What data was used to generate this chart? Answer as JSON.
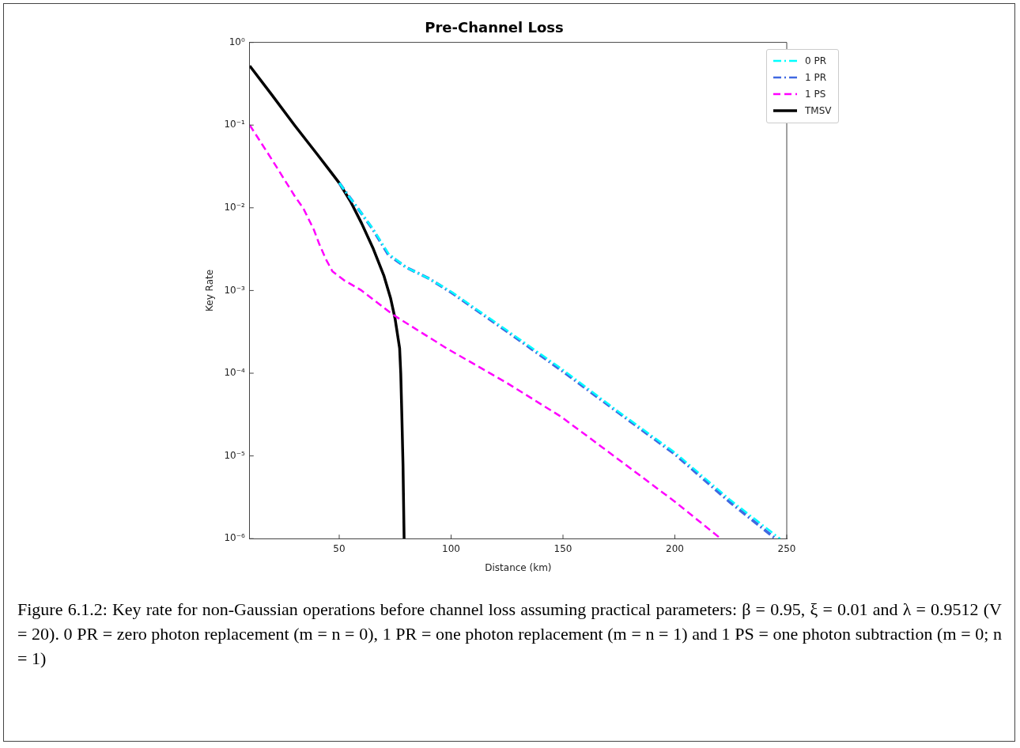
{
  "chart_data": {
    "type": "line",
    "title": "Pre-Channel Loss",
    "xlabel": "Distance (km)",
    "ylabel": "Key Rate",
    "log": "y",
    "grid": false,
    "legend": "top right",
    "marker": "none",
    "xlim": [
      10,
      250
    ],
    "xticks": [
      50,
      100,
      150,
      200,
      250
    ],
    "ylim": [
      1e-06,
      1
    ],
    "yticks": [
      {
        "value": 1,
        "label": "10⁰"
      },
      {
        "value": 0.1,
        "label": "10⁻¹"
      },
      {
        "value": 0.01,
        "label": "10⁻²"
      },
      {
        "value": 0.001,
        "label": "10⁻³"
      },
      {
        "value": 0.0001,
        "label": "10⁻⁴"
      },
      {
        "value": 1e-05,
        "label": "10⁻⁵"
      },
      {
        "value": 1e-06,
        "label": "10⁻⁶"
      }
    ],
    "series": [
      {
        "name": "0 PR",
        "color": "#00ffff",
        "line_style": "dashdot",
        "x": [
          50,
          55,
          60,
          65,
          72,
          80,
          90,
          100,
          125,
          150,
          175,
          200,
          225,
          247
        ],
        "values": [
          0.02,
          0.013,
          0.0086,
          0.0056,
          0.0028,
          0.0019,
          0.0014,
          0.00097,
          0.00033,
          0.00011,
          3.4e-05,
          1.1e-05,
          2.9e-06,
          1e-06
        ]
      },
      {
        "name": "1 PR",
        "color": "#4169e1",
        "line_style": "dashdot",
        "x": [
          50,
          55,
          60,
          65,
          72,
          80,
          90,
          100,
          125,
          150,
          175,
          200,
          225,
          245
        ],
        "values": [
          0.02,
          0.013,
          0.0085,
          0.0055,
          0.0027,
          0.0019,
          0.0014,
          0.00095,
          0.00032,
          0.000105,
          3.3e-05,
          1.05e-05,
          2.7e-06,
          1e-06
        ]
      },
      {
        "name": "1 PS",
        "color": "#ff00ff",
        "line_style": "dashed",
        "x": [
          10,
          20,
          30,
          34,
          38.7,
          41,
          44,
          47,
          52,
          60,
          74,
          98,
          125,
          149,
          175,
          200,
          220.5
        ],
        "values": [
          0.1,
          0.038,
          0.014,
          0.0098,
          0.0054,
          0.0037,
          0.0024,
          0.0017,
          0.00134,
          0.001,
          0.00051,
          0.0002,
          7.6e-05,
          3e-05,
          9e-06,
          2.8e-06,
          1e-06
        ]
      },
      {
        "name": "TMSV",
        "color": "#000000",
        "line_style": "solid",
        "x": [
          10,
          20,
          30,
          40,
          45,
          50,
          55,
          60,
          65,
          70,
          73,
          75,
          77,
          77.5,
          78,
          78.5,
          79
        ],
        "values": [
          0.52,
          0.23,
          0.1,
          0.045,
          0.03,
          0.02,
          0.012,
          0.0065,
          0.0033,
          0.0015,
          0.0008,
          0.00045,
          0.0002,
          0.0001,
          3e-05,
          8e-06,
          1e-06
        ]
      }
    ],
    "annotations": [
      "Figure 6.1.2: Key rate for non-Gaussian operations before channel loss assuming practical parameters: β = 0.95, ξ = 0.01 and λ = 0.9512 (V = 20). 0 PR = zero photon replacement (m = n = 0), 1 PR = one photon replacement (m = n = 1) and 1 PS = one photon subtraction (m = 0; n = 1)"
    ]
  }
}
